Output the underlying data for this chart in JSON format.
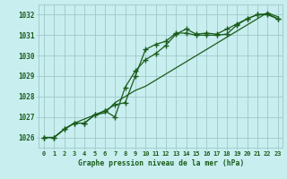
{
  "xlabel": "Graphe pression niveau de la mer (hPa)",
  "x": [
    0,
    1,
    2,
    3,
    4,
    5,
    6,
    7,
    8,
    9,
    10,
    11,
    12,
    13,
    14,
    15,
    16,
    17,
    18,
    19,
    20,
    21,
    22,
    23
  ],
  "line1": [
    1026.0,
    1026.0,
    1026.4,
    1026.7,
    1026.7,
    1027.1,
    1027.3,
    1027.6,
    1027.7,
    1029.0,
    1030.3,
    1030.55,
    1030.7,
    1031.1,
    1031.1,
    1031.0,
    1031.0,
    1031.0,
    1031.05,
    1031.5,
    1031.8,
    1032.0,
    1032.0,
    1031.8
  ],
  "line2": [
    1026.0,
    1026.0,
    1026.4,
    1026.7,
    1026.7,
    1027.1,
    1027.3,
    1027.0,
    1028.45,
    1029.25,
    1029.8,
    1030.1,
    1030.5,
    1031.05,
    1031.3,
    1031.05,
    1031.1,
    1031.05,
    1031.3,
    1031.55,
    1031.8,
    1032.0,
    1032.05,
    1031.8
  ],
  "line3": [
    1026.0,
    1026.0,
    1026.4,
    1026.7,
    1026.9,
    1027.1,
    1027.2,
    1027.7,
    1028.0,
    1028.3,
    1028.5,
    1028.8,
    1029.1,
    1029.4,
    1029.7,
    1030.0,
    1030.3,
    1030.6,
    1030.9,
    1031.2,
    1031.5,
    1031.8,
    1032.1,
    1031.9
  ],
  "ylim": [
    1025.5,
    1032.5
  ],
  "yticks": [
    1026,
    1027,
    1028,
    1029,
    1030,
    1031,
    1032
  ],
  "line_color": "#1a5c1a",
  "bg_color": "#c8eef0",
  "grid_color": "#a0c8c8",
  "label_color": "#1a5c1a",
  "marker": "+",
  "markersize": 4,
  "markeredgewidth": 1.0,
  "linewidth": 0.9
}
